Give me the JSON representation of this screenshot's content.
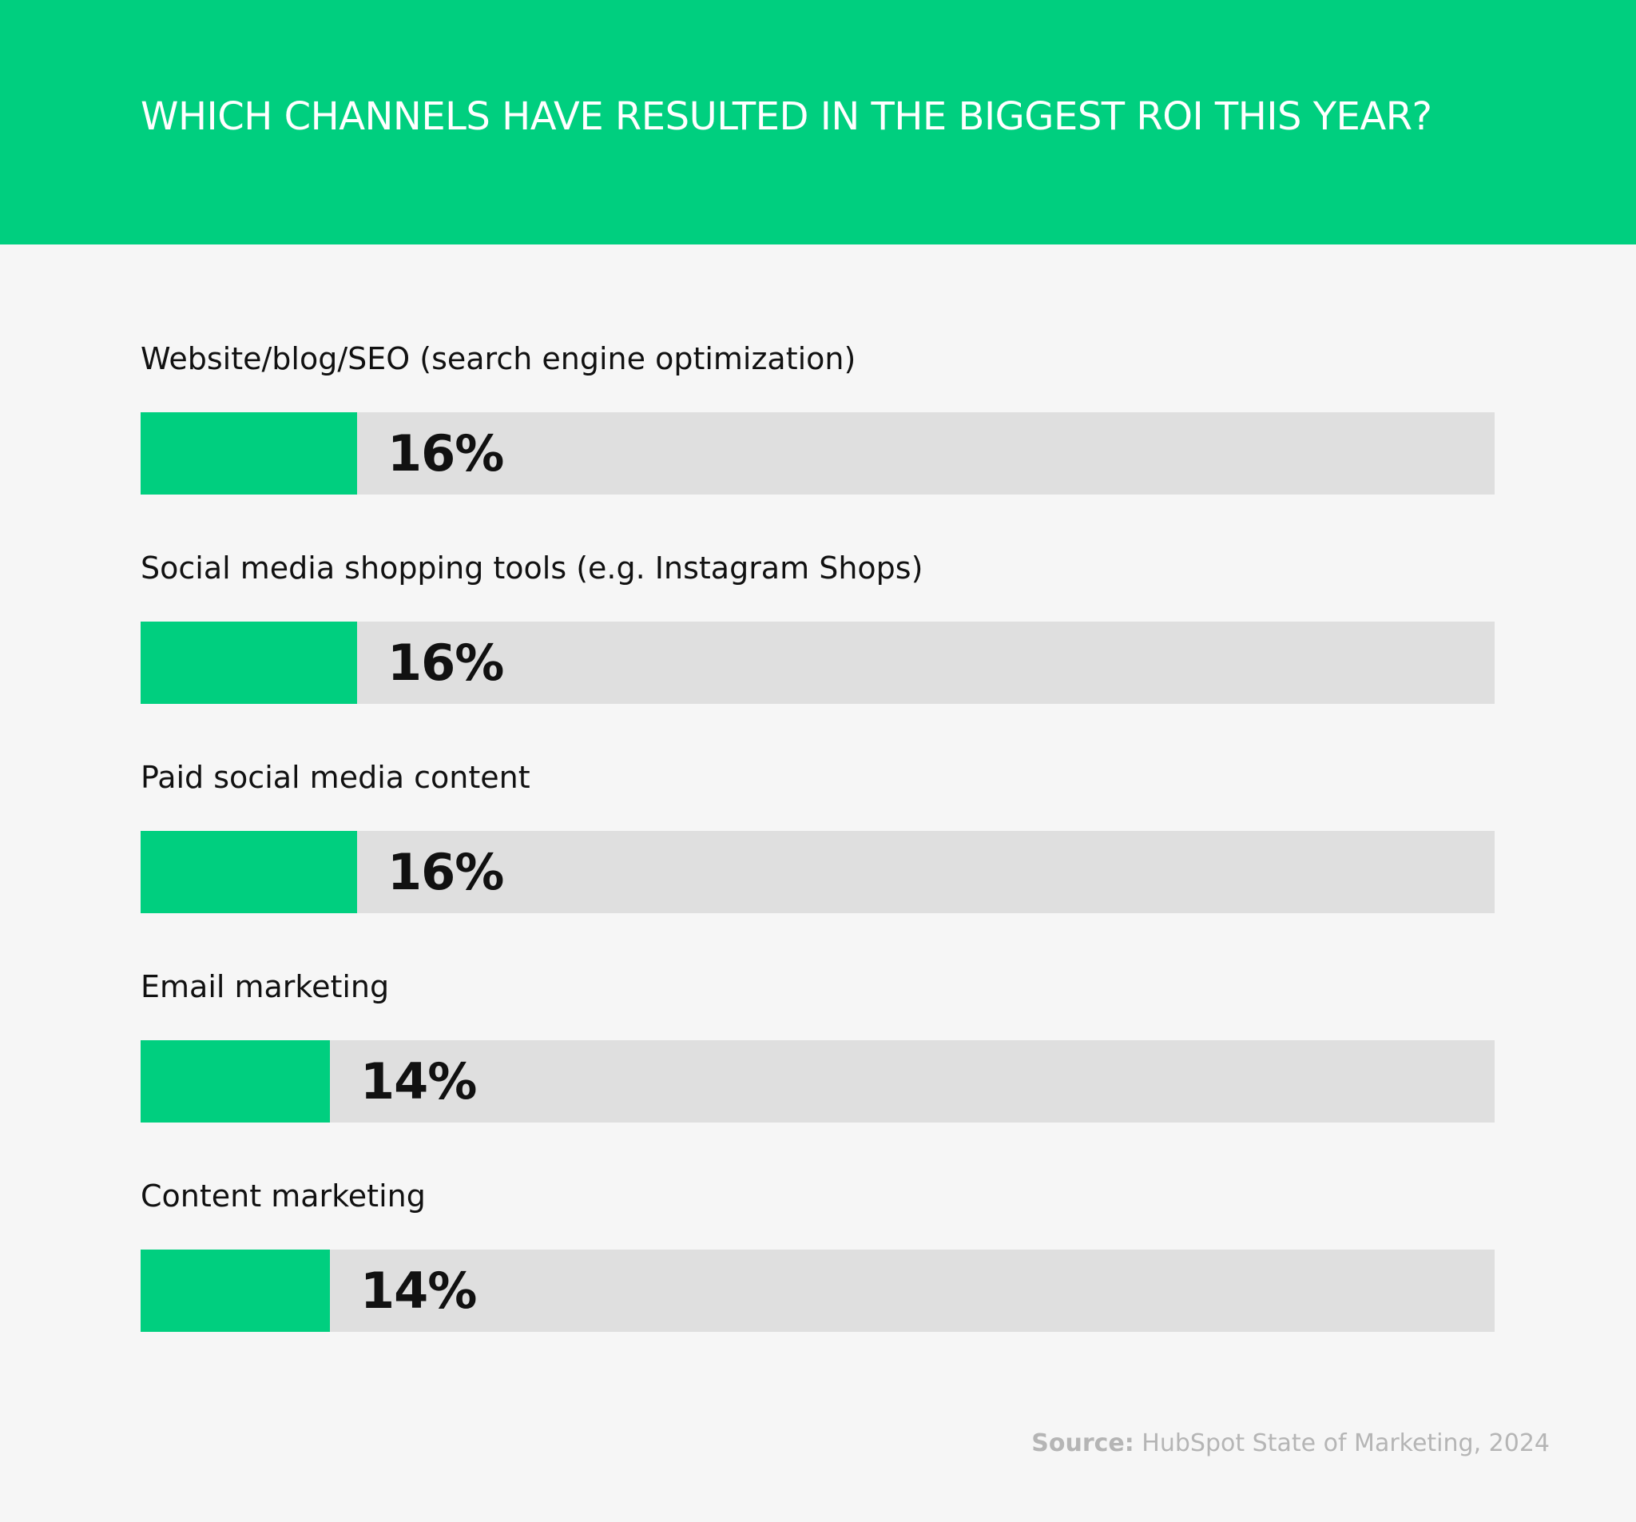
{
  "header": {
    "title": "WHICH CHANNELS HAVE RESULTED IN THE BIGGEST ROI THIS YEAR?"
  },
  "chart_data": {
    "type": "bar",
    "orientation": "horizontal",
    "title": "WHICH CHANNELS HAVE RESULTED IN THE BIGGEST ROI THIS YEAR?",
    "categories": [
      "Website/blog/SEO (search engine optimization)",
      "Social media shopping tools (e.g. Instagram Shops)",
      "Paid social media content",
      "Email marketing",
      "Content marketing"
    ],
    "values": [
      16,
      16,
      16,
      14,
      14
    ],
    "value_labels": [
      "16%",
      "16%",
      "16%",
      "14%",
      "14%"
    ],
    "unit": "%",
    "xlim": [
      0,
      100
    ],
    "grid": false,
    "legend": "none",
    "colors": {
      "fill": "#00cf7f",
      "track": "#dfdfdf"
    }
  },
  "footer": {
    "source_prefix": "Source:",
    "source_text": " HubSpot State of Marketing, 2024"
  }
}
